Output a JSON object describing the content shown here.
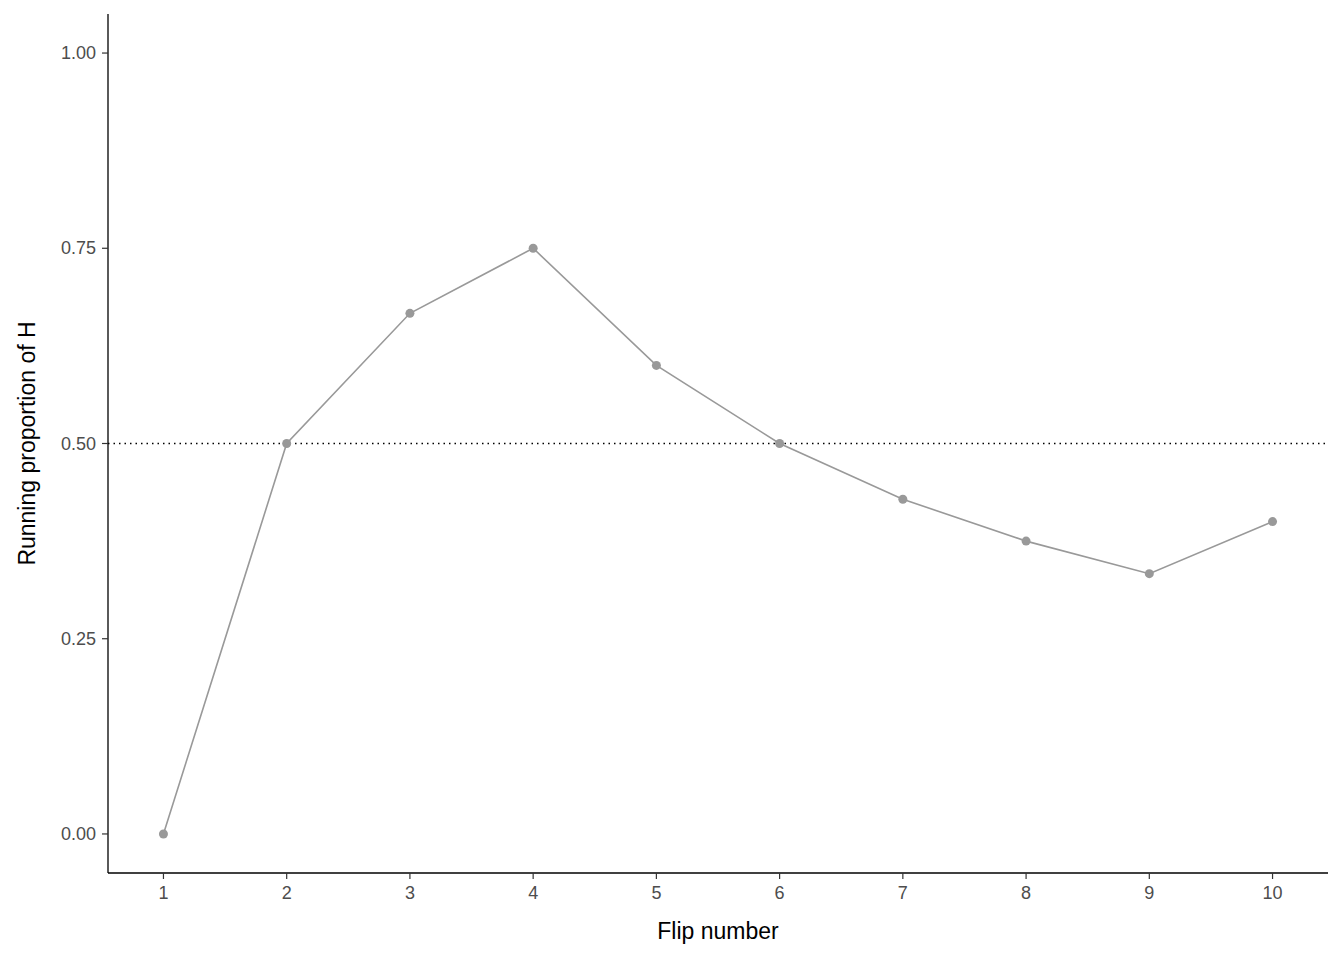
{
  "chart_data": {
    "type": "line",
    "x_label": "Flip number",
    "y_label": "Running proportion of H",
    "x": [
      1,
      2,
      3,
      4,
      5,
      6,
      7,
      8,
      9,
      10
    ],
    "values": [
      0,
      0.5,
      0.6667,
      0.75,
      0.6,
      0.5,
      0.4286,
      0.375,
      0.3333,
      0.4
    ],
    "color": "#999999",
    "marker": "circle",
    "xlim": [
      0.55,
      10.45
    ],
    "xticks": [
      1,
      2,
      3,
      4,
      5,
      6,
      7,
      8,
      9,
      10
    ],
    "ylim": [
      -0.05,
      1.05
    ],
    "yticks": [
      {
        "value": 0,
        "label": "0.00"
      },
      {
        "value": 0.25,
        "label": "0.25"
      },
      {
        "value": 0.5,
        "label": "0.50"
      },
      {
        "value": 0.75,
        "label": "0.75"
      },
      {
        "value": 1,
        "label": "1.00"
      }
    ],
    "reference_line": 0.5,
    "grid": false
  }
}
